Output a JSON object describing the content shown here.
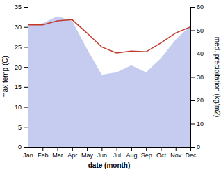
{
  "chart_data": {
    "type": "line",
    "categories": [
      "Jan",
      "Feb",
      "Mar",
      "Apr",
      "May",
      "Jun",
      "Jul",
      "Aug",
      "Sep",
      "Oct",
      "Nov",
      "Dec"
    ],
    "series": [
      {
        "type": "area",
        "axis": "y2",
        "color": "#c5ccf0",
        "values": [
          52.0,
          53.0,
          56.0,
          54.0,
          42.0,
          31.0,
          32.0,
          35.0,
          32.0,
          38.0,
          46.0,
          52.0
        ]
      },
      {
        "type": "line",
        "color": "#c0392b",
        "values": [
          30.5,
          30.5,
          31.5,
          31.8,
          28.5,
          25.0,
          23.5,
          24.0,
          23.8,
          26.0,
          28.5,
          30.0
        ]
      }
    ],
    "ylim": [
      0,
      35
    ],
    "yticks": [
      0,
      5,
      10,
      15,
      20,
      25,
      30,
      35
    ],
    "y2lim": [
      0,
      60
    ],
    "y2ticks": [
      0,
      10,
      20,
      30,
      40,
      50,
      60
    ],
    "xlabel": "date (month)",
    "ylabel": "max temp (C)",
    "y2label": "med. precipitation (kg/m2)",
    "grid": false
  }
}
